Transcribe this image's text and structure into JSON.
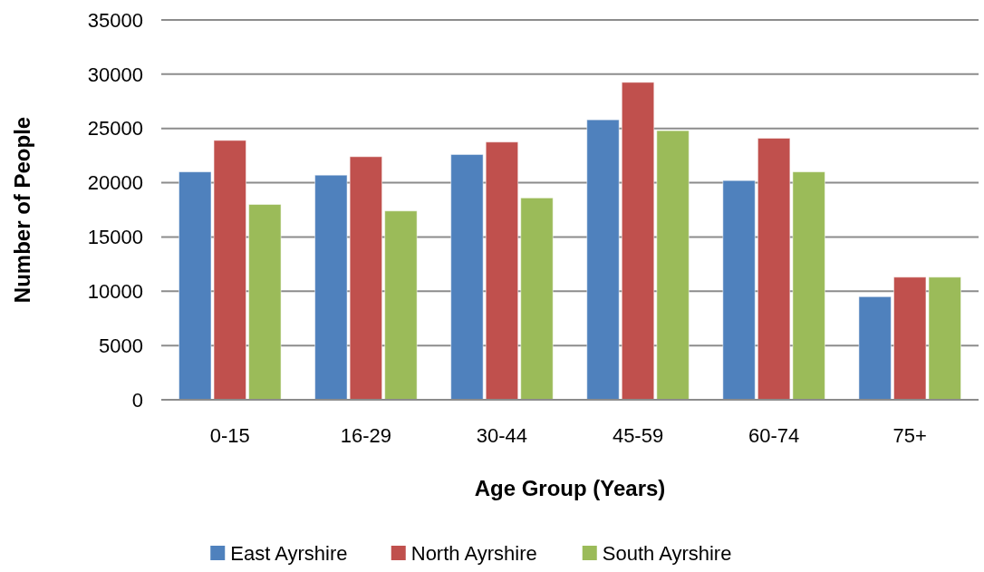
{
  "chart_data": {
    "type": "bar",
    "xlabel": "Age Group (Years)",
    "ylabel": "Number of People",
    "categories": [
      "0-15",
      "16-29",
      "30-44",
      "45-59",
      "60-74",
      "75+"
    ],
    "series": [
      {
        "name": "East Ayrshire",
        "color": "#4f81bd",
        "values": [
          21000,
          20700,
          22600,
          25800,
          20200,
          9500
        ]
      },
      {
        "name": "North Ayrshire",
        "color": "#c0504d",
        "values": [
          23900,
          22400,
          23750,
          29250,
          24100,
          11300
        ]
      },
      {
        "name": "South Ayrshire",
        "color": "#9bbb59",
        "values": [
          18000,
          17400,
          18600,
          24800,
          21000,
          11300
        ]
      }
    ],
    "ylim": [
      0,
      35000
    ],
    "yticks": [
      0,
      5000,
      10000,
      15000,
      20000,
      25000,
      30000,
      35000
    ],
    "grid": "y",
    "legend": "bottom"
  }
}
